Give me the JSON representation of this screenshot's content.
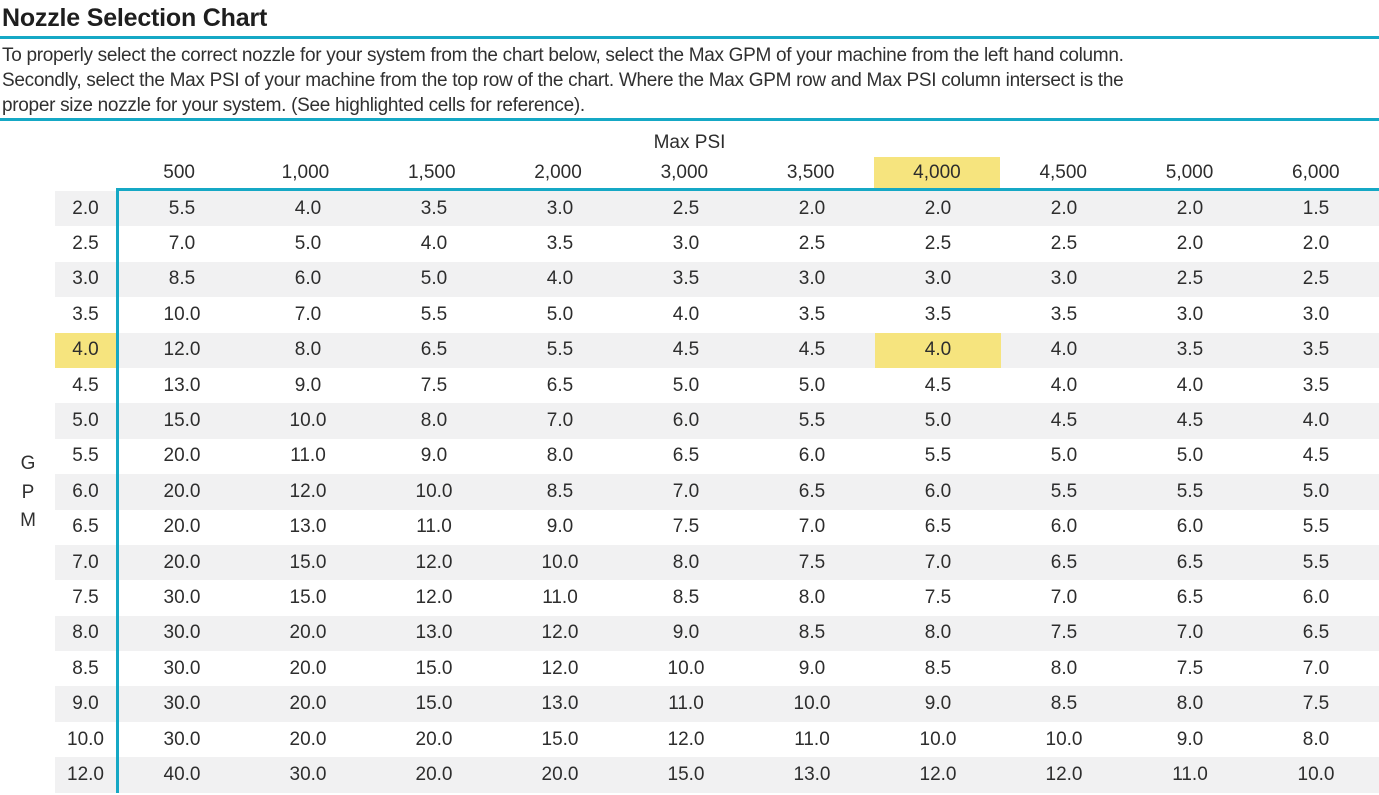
{
  "page": {
    "title": "Nozzle Selection Chart",
    "description_lines": [
      "To properly select the correct nozzle for your system from the chart below, select the Max GPM of your machine from the left hand column.",
      "Secondly, select the Max PSI of your machine from the top row of the chart. Where the Max GPM row and Max PSI column intersect is the",
      "proper size nozzle for your system. (See highlighted cells for reference)."
    ]
  },
  "table": {
    "psi_axis_label": "Max PSI",
    "gpm_axis_letters": [
      "G",
      "P",
      "M"
    ],
    "psi_columns": [
      "500",
      "1,000",
      "1,500",
      "2,000",
      "3,000",
      "3,500",
      "4,000",
      "4,500",
      "5,000",
      "6,000"
    ],
    "rows": [
      {
        "gpm": "2.0",
        "values": [
          "5.5",
          "4.0",
          "3.5",
          "3.0",
          "2.5",
          "2.0",
          "2.0",
          "2.0",
          "2.0",
          "1.5"
        ]
      },
      {
        "gpm": "2.5",
        "values": [
          "7.0",
          "5.0",
          "4.0",
          "3.5",
          "3.0",
          "2.5",
          "2.5",
          "2.5",
          "2.0",
          "2.0"
        ]
      },
      {
        "gpm": "3.0",
        "values": [
          "8.5",
          "6.0",
          "5.0",
          "4.0",
          "3.5",
          "3.0",
          "3.0",
          "3.0",
          "2.5",
          "2.5"
        ]
      },
      {
        "gpm": "3.5",
        "values": [
          "10.0",
          "7.0",
          "5.5",
          "5.0",
          "4.0",
          "3.5",
          "3.5",
          "3.5",
          "3.0",
          "3.0"
        ]
      },
      {
        "gpm": "4.0",
        "values": [
          "12.0",
          "8.0",
          "6.5",
          "5.5",
          "4.5",
          "4.5",
          "4.0",
          "4.0",
          "3.5",
          "3.5"
        ]
      },
      {
        "gpm": "4.5",
        "values": [
          "13.0",
          "9.0",
          "7.5",
          "6.5",
          "5.0",
          "5.0",
          "4.5",
          "4.0",
          "4.0",
          "3.5"
        ]
      },
      {
        "gpm": "5.0",
        "values": [
          "15.0",
          "10.0",
          "8.0",
          "7.0",
          "6.0",
          "5.5",
          "5.0",
          "4.5",
          "4.5",
          "4.0"
        ]
      },
      {
        "gpm": "5.5",
        "values": [
          "20.0",
          "11.0",
          "9.0",
          "8.0",
          "6.5",
          "6.0",
          "5.5",
          "5.0",
          "5.0",
          "4.5"
        ]
      },
      {
        "gpm": "6.0",
        "values": [
          "20.0",
          "12.0",
          "10.0",
          "8.5",
          "7.0",
          "6.5",
          "6.0",
          "5.5",
          "5.5",
          "5.0"
        ]
      },
      {
        "gpm": "6.5",
        "values": [
          "20.0",
          "13.0",
          "11.0",
          "9.0",
          "7.5",
          "7.0",
          "6.5",
          "6.0",
          "6.0",
          "5.5"
        ]
      },
      {
        "gpm": "7.0",
        "values": [
          "20.0",
          "15.0",
          "12.0",
          "10.0",
          "8.0",
          "7.5",
          "7.0",
          "6.5",
          "6.5",
          "5.5"
        ]
      },
      {
        "gpm": "7.5",
        "values": [
          "30.0",
          "15.0",
          "12.0",
          "11.0",
          "8.5",
          "8.0",
          "7.5",
          "7.0",
          "6.5",
          "6.0"
        ]
      },
      {
        "gpm": "8.0",
        "values": [
          "30.0",
          "20.0",
          "13.0",
          "12.0",
          "9.0",
          "8.5",
          "8.0",
          "7.5",
          "7.0",
          "6.5"
        ]
      },
      {
        "gpm": "8.5",
        "values": [
          "30.0",
          "20.0",
          "15.0",
          "12.0",
          "10.0",
          "9.0",
          "8.5",
          "8.0",
          "7.5",
          "7.0"
        ]
      },
      {
        "gpm": "9.0",
        "values": [
          "30.0",
          "20.0",
          "15.0",
          "13.0",
          "11.0",
          "10.0",
          "9.0",
          "8.5",
          "8.0",
          "7.5"
        ]
      },
      {
        "gpm": "10.0",
        "values": [
          "30.0",
          "20.0",
          "20.0",
          "15.0",
          "12.0",
          "11.0",
          "10.0",
          "10.0",
          "9.0",
          "8.0"
        ]
      },
      {
        "gpm": "12.0",
        "values": [
          "40.0",
          "30.0",
          "20.0",
          "20.0",
          "15.0",
          "13.0",
          "12.0",
          "12.0",
          "11.0",
          "10.0"
        ]
      }
    ],
    "highlight": {
      "gpm_row": "4.0",
      "psi_column": "4,000"
    },
    "colors": {
      "accent_teal": "#15A8C5",
      "highlight_yellow": "#F6E47E",
      "stripe_gray": "#F1F1F2"
    }
  }
}
